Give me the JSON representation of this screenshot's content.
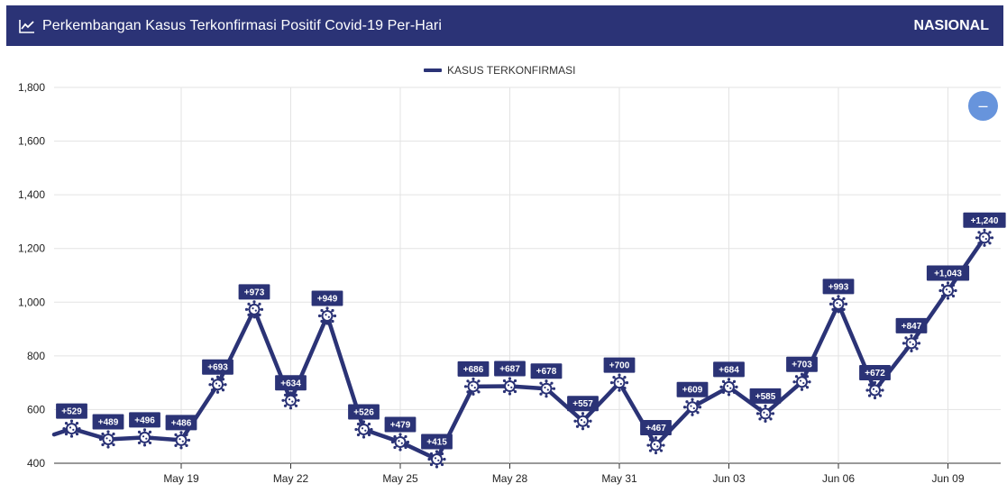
{
  "header": {
    "title": "Perkembangan Kasus Terkonfirmasi Positif Covid-19 Per-Hari",
    "region": "NASIONAL",
    "icon": "line-chart-icon"
  },
  "legend": {
    "label": "KASUS TERKONFIRMASI",
    "color": "#2b3376"
  },
  "zoom_button": {
    "icon": "zoom-out-icon",
    "symbol": "–"
  },
  "chart_data": {
    "type": "line",
    "dates": [
      "May 16",
      "May 17",
      "May 18",
      "May 19",
      "May 20",
      "May 21",
      "May 22",
      "May 23",
      "May 24",
      "May 25",
      "May 26",
      "May 27",
      "May 28",
      "May 29",
      "May 30",
      "May 31",
      "Jun 01",
      "Jun 02",
      "Jun 03",
      "Jun 04",
      "Jun 05",
      "Jun 06",
      "Jun 07",
      "Jun 08",
      "Jun 09",
      "Jun 10"
    ],
    "series": [
      {
        "name": "KASUS TERKONFIRMASI",
        "color": "#2b3376",
        "values": [
          529,
          489,
          496,
          486,
          693,
          973,
          634,
          949,
          526,
          479,
          415,
          686,
          687,
          678,
          557,
          700,
          467,
          609,
          684,
          585,
          703,
          993,
          672,
          847,
          1043,
          1240
        ],
        "labels": [
          "+529",
          "+489",
          "+496",
          "+486",
          "+693",
          "+973",
          "+634",
          "+949",
          "+526",
          "+479",
          "+415",
          "+686",
          "+687",
          "+678",
          "+557",
          "+700",
          "+467",
          "+609",
          "+684",
          "+585",
          "+703",
          "+993",
          "+672",
          "+847",
          "+1,043",
          "+1,240"
        ]
      }
    ],
    "partial_start_value": 507,
    "x_ticks": [
      {
        "date": "May 19",
        "label": "May 19"
      },
      {
        "date": "May 22",
        "label": "May 22"
      },
      {
        "date": "May 25",
        "label": "May 25"
      },
      {
        "date": "May 28",
        "label": "May 28"
      },
      {
        "date": "May 31",
        "label": "May 31"
      },
      {
        "date": "Jun 03",
        "label": "Jun 03"
      },
      {
        "date": "Jun 06",
        "label": "Jun 06"
      },
      {
        "date": "Jun 09",
        "label": "Jun 09"
      }
    ],
    "y_ticks": [
      {
        "value": 400,
        "label": "400"
      },
      {
        "value": 600,
        "label": "600"
      },
      {
        "value": 800,
        "label": "800"
      },
      {
        "value": 1000,
        "label": "1,000"
      },
      {
        "value": 1200,
        "label": "1,200"
      },
      {
        "value": 1400,
        "label": "1,400"
      },
      {
        "value": 1600,
        "label": "1,600"
      },
      {
        "value": 1800,
        "label": "1,800"
      }
    ],
    "ylim": [
      400,
      1800
    ],
    "grid": true,
    "legend_position": "top-center"
  }
}
